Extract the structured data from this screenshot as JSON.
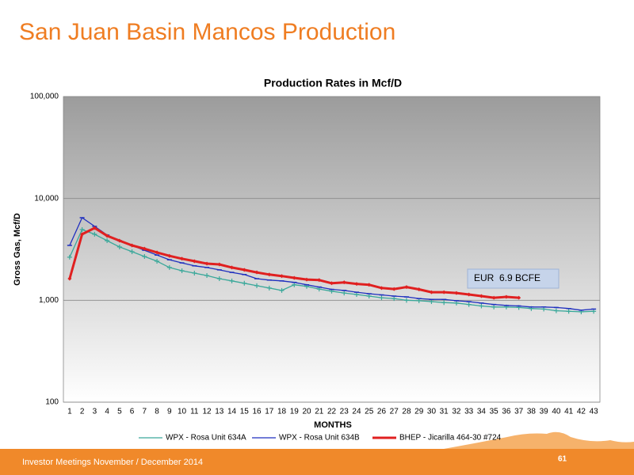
{
  "slide": {
    "title": "San Juan Basin Mancos Production",
    "footer": "Investor Meetings November / December 2014",
    "page": "61"
  },
  "chart_data": {
    "type": "line",
    "title": "Production Rates in Mcf/D",
    "x_label": "MONTHS",
    "y_label": "Gross Gas, Mcf/D",
    "categories": [
      1,
      2,
      3,
      4,
      5,
      6,
      7,
      8,
      9,
      10,
      11,
      12,
      13,
      14,
      15,
      16,
      17,
      18,
      19,
      20,
      21,
      22,
      23,
      24,
      25,
      26,
      27,
      28,
      29,
      30,
      31,
      32,
      33,
      34,
      35,
      36,
      37,
      38,
      39,
      40,
      41,
      42,
      43
    ],
    "yscale": "log",
    "ylim": [
      100,
      100000
    ],
    "yticks": [
      100,
      {
        "value": 1000,
        "label": "1,000"
      },
      {
        "value": 10000,
        "label": "10,000"
      },
      {
        "value": 100000,
        "label": "100,000"
      }
    ],
    "grid": true,
    "legend": "bottom",
    "annotations": [
      {
        "text": "EUR  6.9 BCFE"
      }
    ],
    "series": [
      {
        "name": "WPX - Rosa Unit 634A",
        "color": "#3aa89a",
        "marker": "plus",
        "values": [
          2650,
          4950,
          4450,
          3850,
          3340,
          3000,
          2690,
          2420,
          2100,
          1950,
          1850,
          1750,
          1630,
          1550,
          1470,
          1390,
          1320,
          1250,
          1420,
          1370,
          1290,
          1230,
          1180,
          1140,
          1100,
          1060,
          1040,
          1000,
          990,
          970,
          950,
          940,
          910,
          880,
          860,
          860,
          850,
          830,
          820,
          790,
          780,
          770,
          780
        ]
      },
      {
        "name": "WPX - Rosa Unit 634B",
        "color": "#1f2fbf",
        "marker": "dash",
        "values": [
          3460,
          6470,
          5320,
          4370,
          3850,
          3460,
          3100,
          2780,
          2500,
          2330,
          2180,
          2100,
          1990,
          1880,
          1790,
          1630,
          1580,
          1550,
          1500,
          1420,
          1350,
          1280,
          1250,
          1200,
          1160,
          1130,
          1100,
          1080,
          1040,
          1020,
          1020,
          990,
          970,
          940,
          910,
          890,
          880,
          860,
          860,
          850,
          830,
          800,
          820
        ]
      },
      {
        "name": "BHEP - Jicarilla 464-30 #724",
        "color": "#e02020",
        "marker": "diamond",
        "values": [
          1630,
          4450,
          5130,
          4300,
          3850,
          3460,
          3210,
          2950,
          2730,
          2560,
          2420,
          2290,
          2250,
          2100,
          1990,
          1880,
          1790,
          1730,
          1660,
          1600,
          1580,
          1470,
          1500,
          1450,
          1420,
          1320,
          1290,
          1350,
          1280,
          1200,
          1200,
          1180,
          1140,
          1100,
          1060,
          1080,
          1060,
          null,
          null,
          null,
          null,
          null,
          null
        ]
      }
    ]
  }
}
